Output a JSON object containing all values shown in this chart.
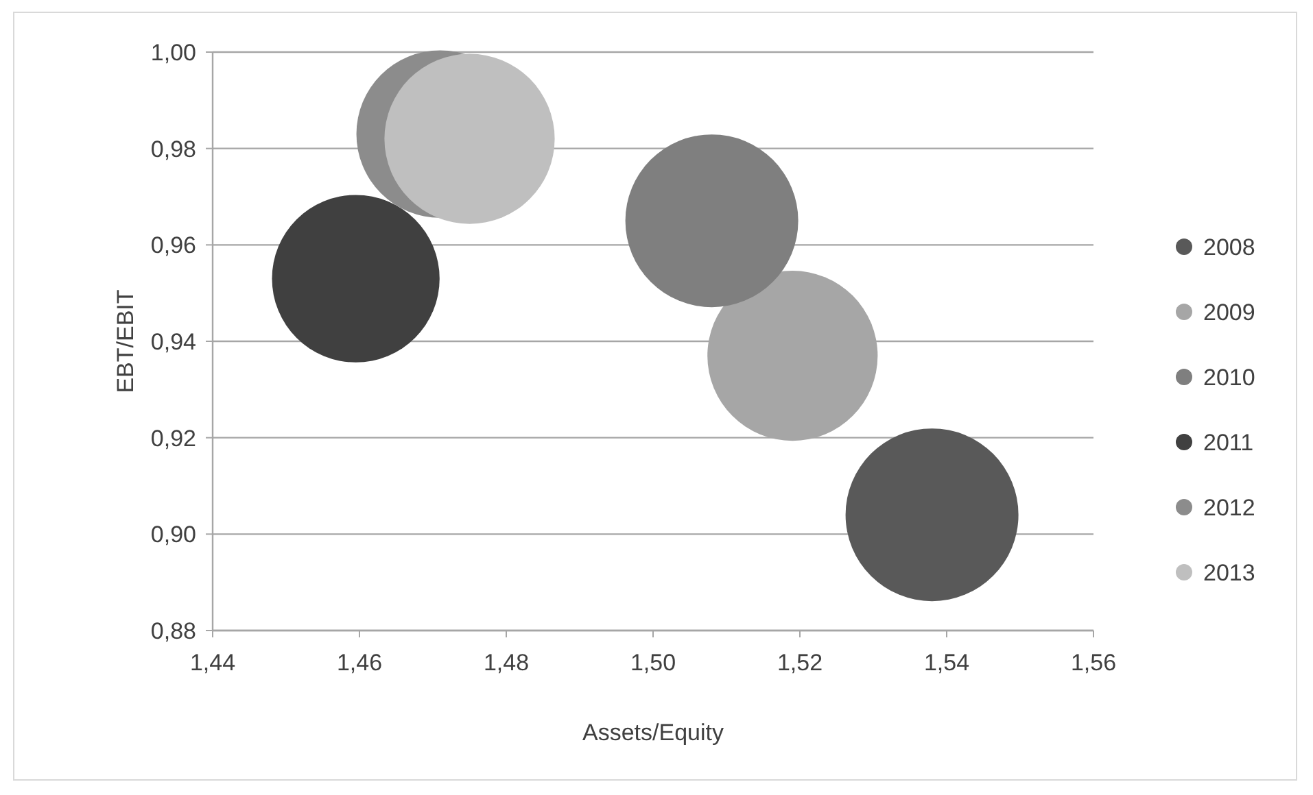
{
  "chart_data": {
    "type": "bubble",
    "xlabel": "Assets/Equity",
    "ylabel": "EBT/EBIT",
    "xlim": [
      1.44,
      1.56
    ],
    "xticks": [
      {
        "value": 1.44,
        "label": "1,44"
      },
      {
        "value": 1.46,
        "label": "1,46"
      },
      {
        "value": 1.48,
        "label": "1,48"
      },
      {
        "value": 1.5,
        "label": "1,50"
      },
      {
        "value": 1.52,
        "label": "1,52"
      },
      {
        "value": 1.54,
        "label": "1,54"
      },
      {
        "value": 1.56,
        "label": "1,56"
      }
    ],
    "ylim": [
      0.88,
      1.0
    ],
    "yticks": [
      {
        "value": 0.88,
        "label": "0,88"
      },
      {
        "value": 0.9,
        "label": "0,90"
      },
      {
        "value": 0.92,
        "label": "0,92"
      },
      {
        "value": 0.94,
        "label": "0,94"
      },
      {
        "value": 0.96,
        "label": "0,96"
      },
      {
        "value": 0.98,
        "label": "0,98"
      },
      {
        "value": 1.0,
        "label": "1,00"
      }
    ],
    "grid": "y",
    "legend": "right",
    "series": [
      {
        "name": "2008",
        "color": "#595959",
        "x": [
          1.538
        ],
        "values": [
          0.904
        ],
        "sizes": [
          1
        ]
      },
      {
        "name": "2009",
        "color": "#a6a6a6",
        "x": [
          1.519
        ],
        "values": [
          0.937
        ],
        "sizes": [
          0.97
        ]
      },
      {
        "name": "2010",
        "color": "#7f7f7f",
        "x": [
          1.508
        ],
        "values": [
          0.965
        ],
        "sizes": [
          1
        ]
      },
      {
        "name": "2011",
        "color": "#404040",
        "x": [
          1.4595
        ],
        "values": [
          0.953
        ],
        "sizes": [
          0.94
        ]
      },
      {
        "name": "2012",
        "color": "#8c8c8c",
        "x": [
          1.471
        ],
        "values": [
          0.983
        ],
        "sizes": [
          0.94
        ]
      },
      {
        "name": "2013",
        "color": "#bfbfbf",
        "x": [
          1.475
        ],
        "values": [
          0.982
        ],
        "sizes": [
          0.97
        ]
      }
    ]
  }
}
